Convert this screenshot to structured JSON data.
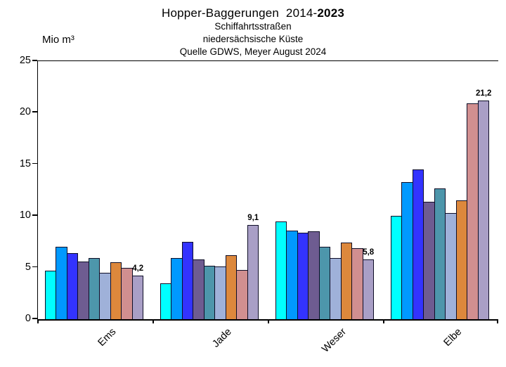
{
  "title": {
    "prefix": "Hopper-Baggerungen  2014-",
    "bold_suffix": "2023"
  },
  "subtitle_lines": [
    "Schiffahrtsstraßen",
    "niedersächsische Küste",
    "Quelle GDWS, Meyer August 2024"
  ],
  "y_axis": {
    "unit_label": "Mio m³",
    "ticks": [
      "25",
      "20",
      "15",
      "10",
      "5",
      "0"
    ],
    "min": 0,
    "max": 25
  },
  "chart_data": {
    "type": "bar",
    "title": "Hopper-Baggerungen 2014-2023",
    "subtitle": "Schiffahrtsstraßen niedersächsische Küste — Quelle GDWS, Meyer August 2024",
    "ylabel": "Mio m³",
    "ylim": [
      0,
      25
    ],
    "ytick_step": 5,
    "grid": false,
    "legend_position": "none",
    "bars_per_group": 9,
    "categories": [
      "Ems",
      "Jade",
      "Weser",
      "Elbe"
    ],
    "bar_colors": [
      "#00ffff",
      "#0099ff",
      "#3333ff",
      "#6e5c91",
      "#4d96ab",
      "#9fb1d9",
      "#dd883c",
      "#d18f90",
      "#a99fc6"
    ],
    "groups": [
      {
        "category": "Ems",
        "values": [
          4.7,
          7.0,
          6.4,
          5.6,
          5.9,
          4.5,
          5.5,
          5.0,
          4.2
        ],
        "last_bar_label": "4,2"
      },
      {
        "category": "Jade",
        "values": [
          3.5,
          5.9,
          7.5,
          5.8,
          5.2,
          5.1,
          6.2,
          4.8,
          9.1
        ],
        "last_bar_label": "9,1"
      },
      {
        "category": "Weser",
        "values": [
          9.5,
          8.6,
          8.4,
          8.5,
          7.0,
          5.9,
          7.4,
          6.9,
          5.8
        ],
        "last_bar_label": "5,8"
      },
      {
        "category": "Elbe",
        "values": [
          10.0,
          13.3,
          14.5,
          11.4,
          12.7,
          10.3,
          11.5,
          20.9,
          21.2
        ],
        "last_bar_label": "21,2"
      }
    ],
    "annotations": [
      "4,2",
      "9,1",
      "5,8",
      "21,2"
    ],
    "axis_color": "#000000",
    "bar_outline_color": "#0d0d26"
  }
}
